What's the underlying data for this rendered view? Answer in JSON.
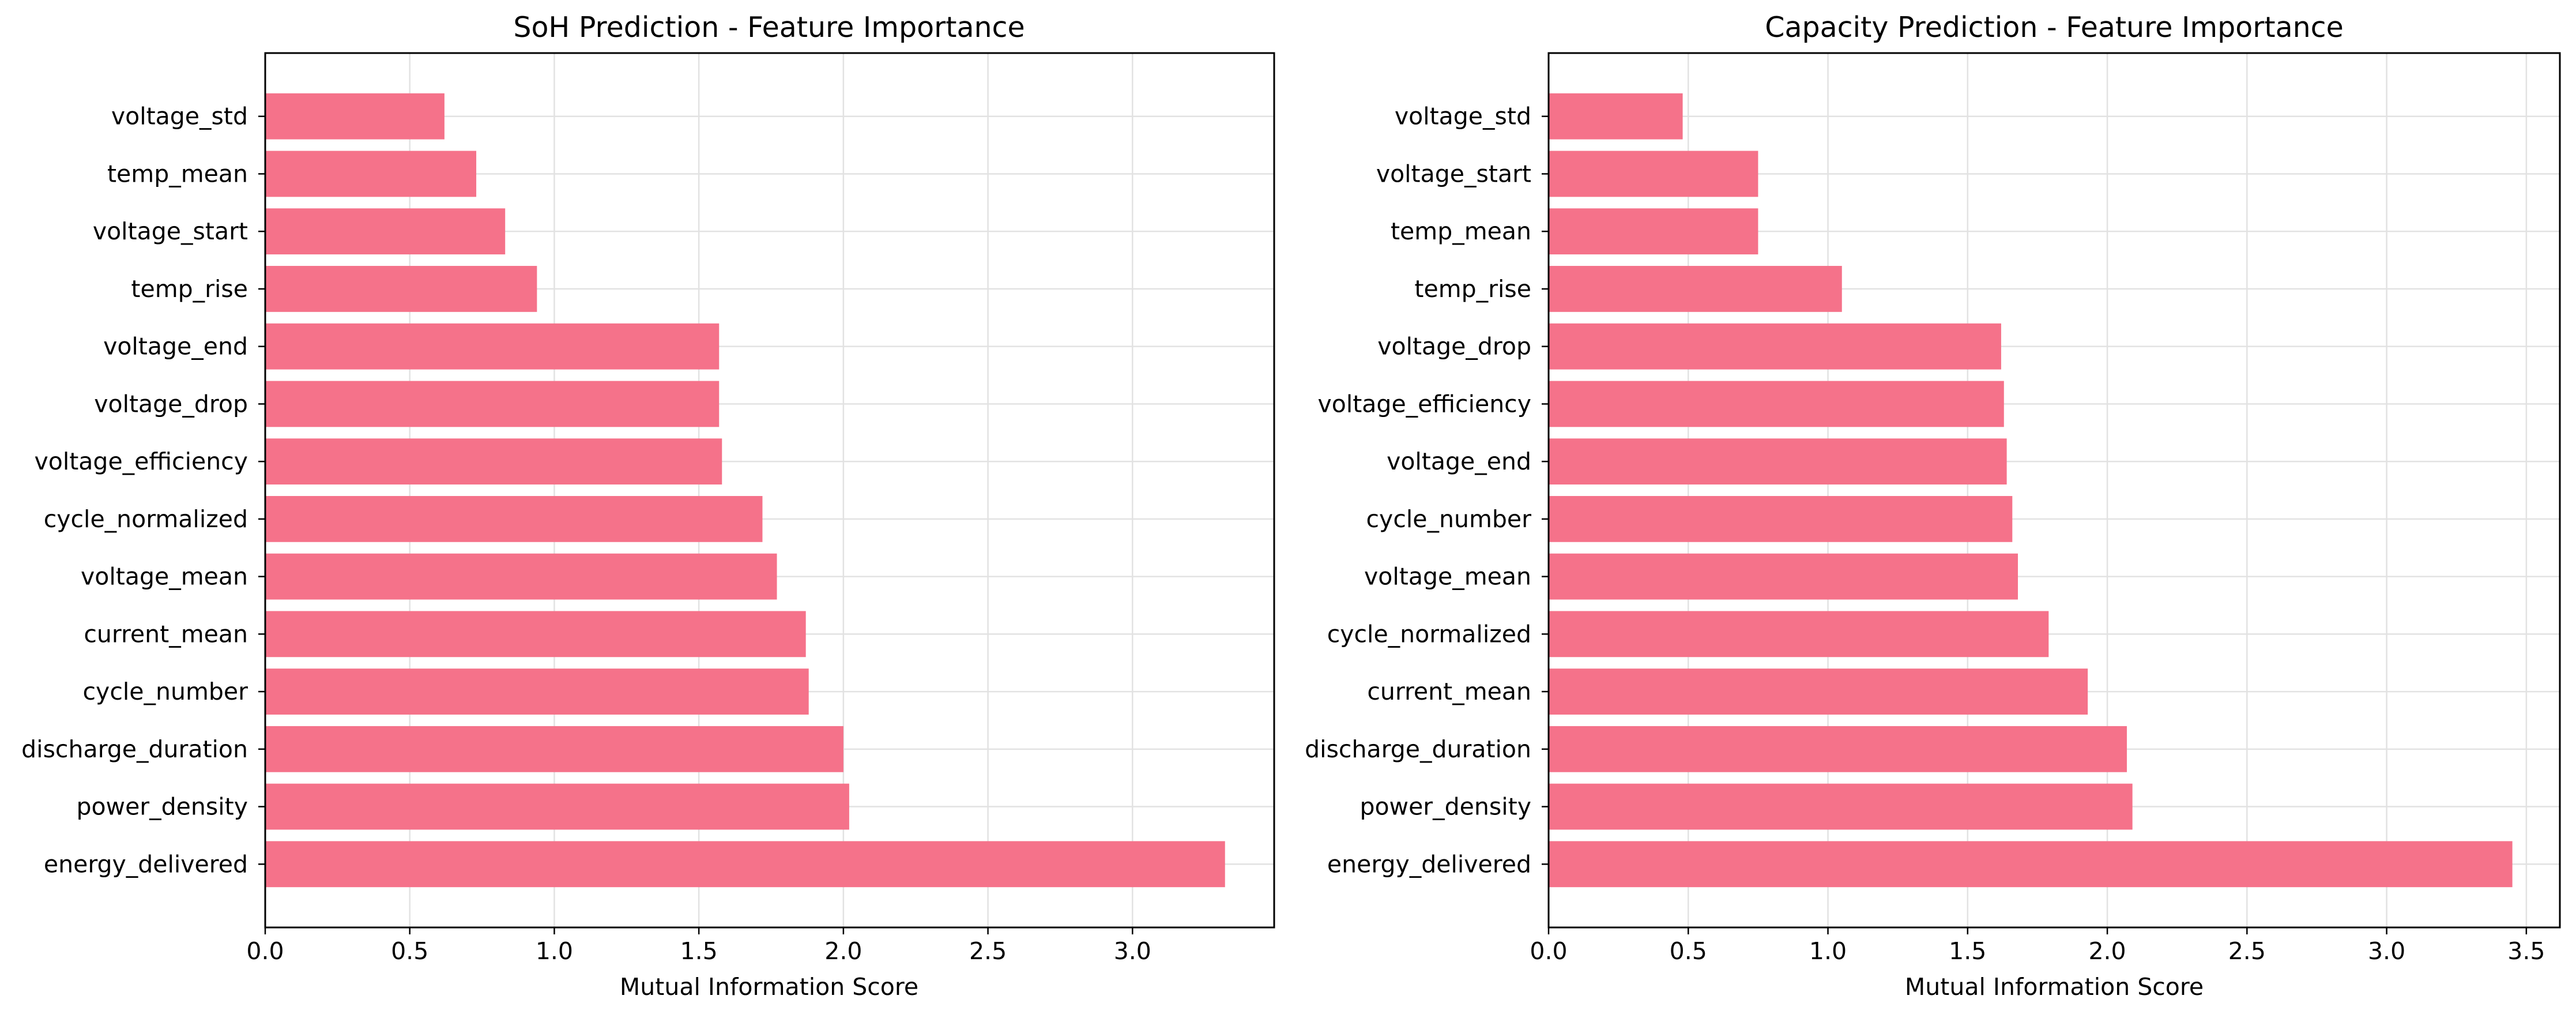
{
  "colors": {
    "bar": "#f5728a",
    "grid": "#e2e2e2",
    "axis": "#000000"
  },
  "chart_data": [
    {
      "type": "bar",
      "orientation": "horizontal",
      "title": "SoH Prediction - Feature Importance",
      "xlabel": "Mutual Information Score",
      "ylabel": "",
      "xlim": [
        0,
        3.49
      ],
      "xticks": [
        0.0,
        0.5,
        1.0,
        1.5,
        2.0,
        2.5,
        3.0
      ],
      "xtick_labels": [
        "0.0",
        "0.5",
        "1.0",
        "1.5",
        "2.0",
        "2.5",
        "3.0"
      ],
      "grid": true,
      "categories": [
        "voltage_std",
        "temp_mean",
        "voltage_start",
        "temp_rise",
        "voltage_end",
        "voltage_drop",
        "voltage_efficiency",
        "cycle_normalized",
        "voltage_mean",
        "current_mean",
        "cycle_number",
        "discharge_duration",
        "power_density",
        "energy_delivered"
      ],
      "values": [
        0.62,
        0.73,
        0.83,
        0.94,
        1.57,
        1.57,
        1.58,
        1.72,
        1.77,
        1.87,
        1.88,
        2.0,
        2.02,
        3.32
      ]
    },
    {
      "type": "bar",
      "orientation": "horizontal",
      "title": "Capacity Prediction - Feature Importance",
      "xlabel": "Mutual Information Score",
      "ylabel": "",
      "xlim": [
        0,
        3.62
      ],
      "xticks": [
        0.0,
        0.5,
        1.0,
        1.5,
        2.0,
        2.5,
        3.0,
        3.5
      ],
      "xtick_labels": [
        "0.0",
        "0.5",
        "1.0",
        "1.5",
        "2.0",
        "2.5",
        "3.0",
        "3.5"
      ],
      "grid": true,
      "categories": [
        "voltage_std",
        "voltage_start",
        "temp_mean",
        "temp_rise",
        "voltage_drop",
        "voltage_efficiency",
        "voltage_end",
        "cycle_number",
        "voltage_mean",
        "cycle_normalized",
        "current_mean",
        "discharge_duration",
        "power_density",
        "energy_delivered"
      ],
      "values": [
        0.48,
        0.75,
        0.75,
        1.05,
        1.62,
        1.63,
        1.64,
        1.66,
        1.68,
        1.79,
        1.93,
        2.07,
        2.09,
        3.45
      ]
    }
  ]
}
